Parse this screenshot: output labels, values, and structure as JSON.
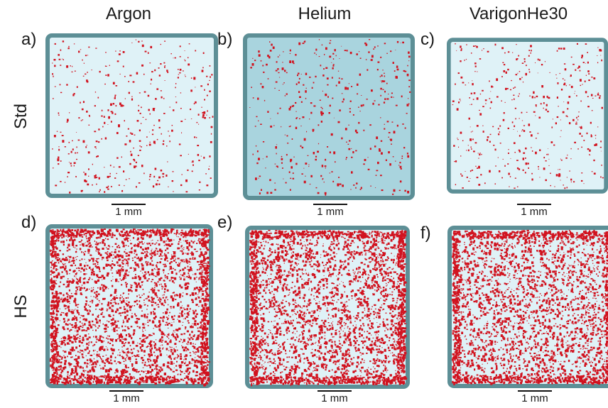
{
  "columns": [
    "Argon",
    "Helium",
    "VarigonHe30"
  ],
  "rows": [
    "Std",
    "HS"
  ],
  "panels": [
    {
      "label": "a)",
      "scale": "1 mm"
    },
    {
      "label": "b)",
      "scale": "1 mm"
    },
    {
      "label": "c)",
      "scale": "1 mm"
    },
    {
      "label": "d)",
      "scale": "1 mm"
    },
    {
      "label": "e)",
      "scale": "1 mm"
    },
    {
      "label": "f)",
      "scale": "1 mm"
    }
  ],
  "colors": {
    "frame": "#5d8f96",
    "fill_light": "#dff2f7",
    "fill_helium": "#a9d4de",
    "defect": "#d1131f"
  }
}
